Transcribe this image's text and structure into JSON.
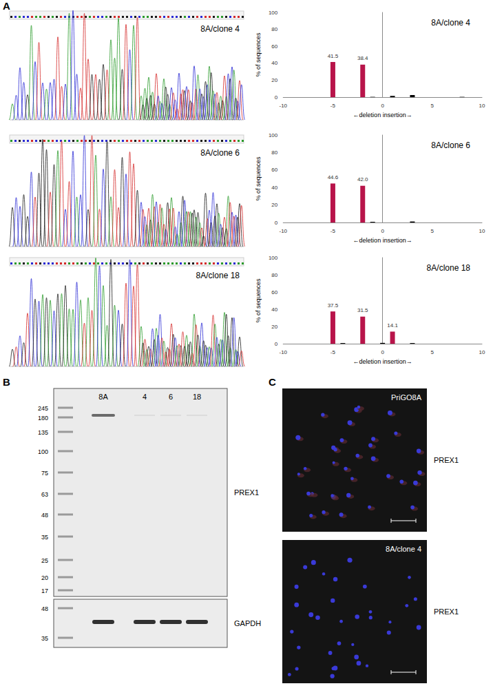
{
  "panel_labels": [
    "A",
    "B",
    "C"
  ],
  "chromatograms": [
    {
      "label": "8A/clone 4"
    },
    {
      "label": "8A/clone 6"
    },
    {
      "label": "8A/clone 18"
    }
  ],
  "chart_data": [
    {
      "type": "bar",
      "title": "8A/clone 4",
      "x_label": "←deletion insertion→",
      "y_label": "% of sequences",
      "xlim": [
        -10,
        10
      ],
      "xticks": [
        -10,
        -5,
        0,
        5,
        10
      ],
      "ylim": [
        0,
        100
      ],
      "yticks": [
        0,
        20,
        40,
        60,
        80,
        100
      ],
      "grid": false,
      "series": [
        {
          "color": "#b8144a",
          "data_labels": true,
          "x": [
            -5,
            -2
          ],
          "values": [
            41.5,
            38.4
          ],
          "value_labels": [
            "41.5",
            "38.4"
          ]
        },
        {
          "color": "#000000",
          "x": [
            -1,
            1,
            3,
            8
          ],
          "values": [
            0.4,
            1.5,
            2.5,
            0.4
          ]
        }
      ]
    },
    {
      "type": "bar",
      "title": "8A/clone 6",
      "x_label": "←deletion insertion→",
      "y_label": "% of sequences",
      "xlim": [
        -10,
        10
      ],
      "xticks": [
        -10,
        -5,
        0,
        5,
        10
      ],
      "ylim": [
        0,
        100
      ],
      "yticks": [
        0,
        20,
        40,
        60,
        80,
        100
      ],
      "grid": false,
      "series": [
        {
          "color": "#b8144a",
          "data_labels": true,
          "x": [
            -5,
            -2
          ],
          "values": [
            44.6,
            42.0
          ],
          "value_labels": [
            "44.6",
            "42.0"
          ]
        },
        {
          "color": "#000000",
          "x": [
            -1,
            3
          ],
          "values": [
            0.8,
            1.2
          ]
        }
      ]
    },
    {
      "type": "bar",
      "title": "8A/clone 18",
      "x_label": "←deletion insertion→",
      "y_label": "% of sequences",
      "xlim": [
        -10,
        10
      ],
      "xticks": [
        -10,
        -5,
        0,
        5,
        10
      ],
      "ylim": [
        0,
        100
      ],
      "yticks": [
        0,
        20,
        40,
        60,
        80,
        100
      ],
      "grid": false,
      "series": [
        {
          "color": "#b8144a",
          "data_labels": true,
          "x": [
            -5,
            -2,
            1
          ],
          "values": [
            37.5,
            31.5,
            14.1
          ],
          "value_labels": [
            "37.5",
            "31.5",
            "14.1"
          ]
        },
        {
          "color": "#000000",
          "x": [
            -4,
            0,
            3
          ],
          "values": [
            0.8,
            1.0,
            0.8
          ]
        }
      ]
    }
  ],
  "western_blot": {
    "lanes": [
      "8A",
      "4",
      "6",
      "18"
    ],
    "blots": [
      {
        "target": "PREX1",
        "markers": [
          245,
          180,
          135,
          100,
          75,
          63,
          48,
          35,
          25,
          20,
          17
        ]
      },
      {
        "target": "GAPDH",
        "markers": [
          48,
          35
        ]
      }
    ]
  },
  "immunofluorescence": [
    {
      "sample": "PriGO8A",
      "stain": "PREX1"
    },
    {
      "sample": "8A/clone 4",
      "stain": "PREX1"
    }
  ]
}
